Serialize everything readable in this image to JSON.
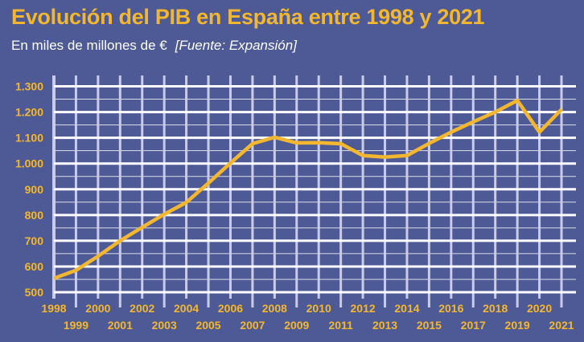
{
  "chart_data": {
    "type": "line",
    "title": "Evolución del PIB en España entre 1998 y 2021",
    "subtitle": "En miles de millones de €",
    "source": "[Fuente: Expansión]",
    "xlabel": "",
    "ylabel": "",
    "x": [
      1998,
      1999,
      2000,
      2001,
      2002,
      2003,
      2004,
      2005,
      2006,
      2007,
      2008,
      2009,
      2010,
      2011,
      2012,
      2013,
      2014,
      2015,
      2016,
      2017,
      2018,
      2019,
      2020,
      2021
    ],
    "series": [
      {
        "values": [
          554,
          585,
          640,
          700,
          752,
          803,
          849,
          924,
          1002,
          1077,
          1102,
          1080,
          1081,
          1077,
          1031,
          1025,
          1031,
          1078,
          1122,
          1162,
          1200,
          1245,
          1122,
          1210
        ]
      }
    ],
    "ylim": [
      500,
      1300
    ],
    "yticks": [
      500,
      600,
      700,
      800,
      900,
      1000,
      1100,
      1200,
      1300
    ],
    "ytick_labels": [
      "500",
      "600",
      "700",
      "800",
      "900",
      "1.000",
      "1.100",
      "1.200",
      "1.300"
    ],
    "grid": true,
    "colors": {
      "background": "#4e5a95",
      "line": "#f3b72f",
      "grid_major": "#ffffff",
      "grid_vertical": "#c9cbec",
      "text": "#f3b72f"
    }
  }
}
